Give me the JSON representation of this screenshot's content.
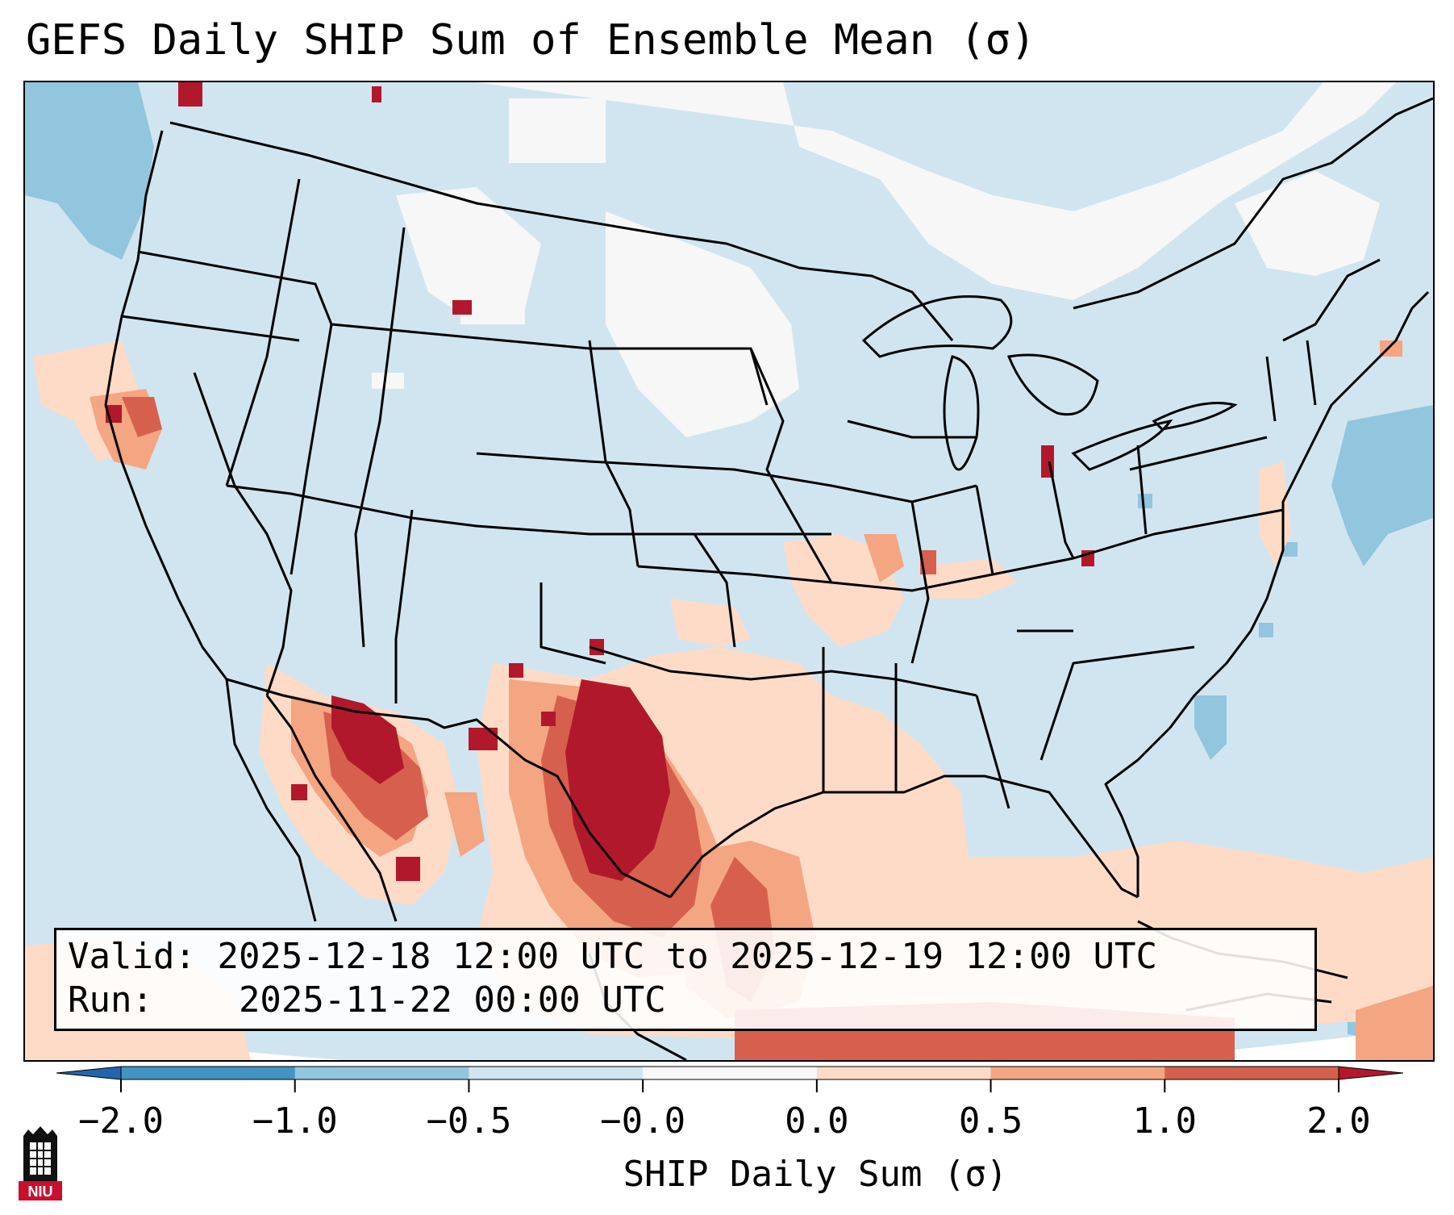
{
  "title": "GEFS Daily SHIP Sum of Ensemble Mean (σ)",
  "info": {
    "valid_label": "Valid:",
    "valid_value": "2025-12-18 12:00 UTC to 2025-12-19 12:00 UTC",
    "run_label": "Run:",
    "run_value": "2025-11-22 00:00 UTC"
  },
  "colorbar": {
    "label": "SHIP Daily Sum (σ)",
    "ticks": [
      "−2.0",
      "−1.0",
      "−0.5",
      "−0.0",
      "0.0",
      "0.5",
      "1.0",
      "2.0"
    ],
    "bins": [
      {
        "range": "< -2.0",
        "color": "#2166ac"
      },
      {
        "range": "-2.0 to -1.0",
        "color": "#4393c3"
      },
      {
        "range": "-1.0 to -0.5",
        "color": "#92c5de"
      },
      {
        "range": "-0.5 to -0.0",
        "color": "#d1e5f0"
      },
      {
        "range": "-0.0 to 0.0",
        "color": "#f7f7f7"
      },
      {
        "range": "0.0 to 0.5",
        "color": "#fddbc7"
      },
      {
        "range": "0.5 to 1.0",
        "color": "#f4a582"
      },
      {
        "range": "1.0 to 2.0",
        "color": "#d6604d"
      },
      {
        "range": "> 2.0",
        "color": "#b2182b"
      }
    ]
  },
  "map": {
    "projection": "Lambert Conformal, CONUS",
    "background_color": "#d1e5f0"
  },
  "logo_text": "NIU"
}
